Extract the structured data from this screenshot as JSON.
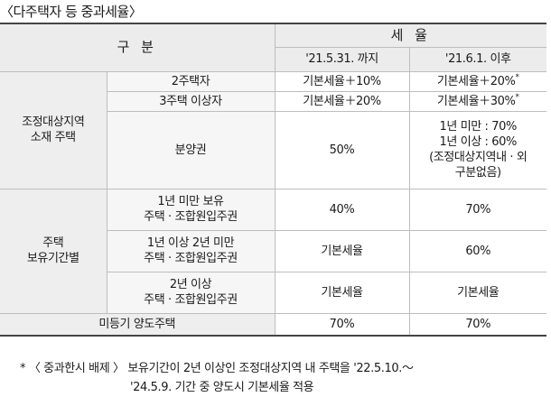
{
  "title": "〈다주택자 등 중과세율〉",
  "header": {
    "category": "구 분",
    "tax_rate": "세 율",
    "before": "'21.5.31. 까지",
    "after": "'21.6.1. 이후"
  },
  "groups": {
    "adjusted_area": "조정대상지역\n소재 주택",
    "holding_period": "주택\n보유기간별"
  },
  "rows": [
    {
      "label": "2주택자",
      "before": "기본세율＋10%",
      "after": "기본세율＋20%",
      "after_star": "*"
    },
    {
      "label": "3주택 이상자",
      "before": "기본세율＋20%",
      "after": "기본세율＋30%",
      "after_star": "*"
    },
    {
      "label": "분양권",
      "before": "50%",
      "after": "1년 미만 : 70%\n1년 이상 : 60%\n(조정대상지역내 · 외\n구분없음)"
    },
    {
      "label": "1년 미만 보유\n주택 · 조합원입주권",
      "before": "40%",
      "after": "70%"
    },
    {
      "label": "1년 이상 2년 미만\n주택 · 조합원입주권",
      "before": "기본세율",
      "after": "60%"
    },
    {
      "label": "2년 이상\n주택 · 조합원입주권",
      "before": "기본세율",
      "after": "기본세율"
    }
  ],
  "unregistered": {
    "label": "미등기 양도주택",
    "before": "70%",
    "after": "70%"
  },
  "note": {
    "line1": "* 〈 중과한시 배제 〉 보유기간이 2년 이상인 조정대상지역 내 주택을 '22.5.10.～",
    "line2": "'24.5.9. 기간 중 양도시 기본세율 적용"
  }
}
